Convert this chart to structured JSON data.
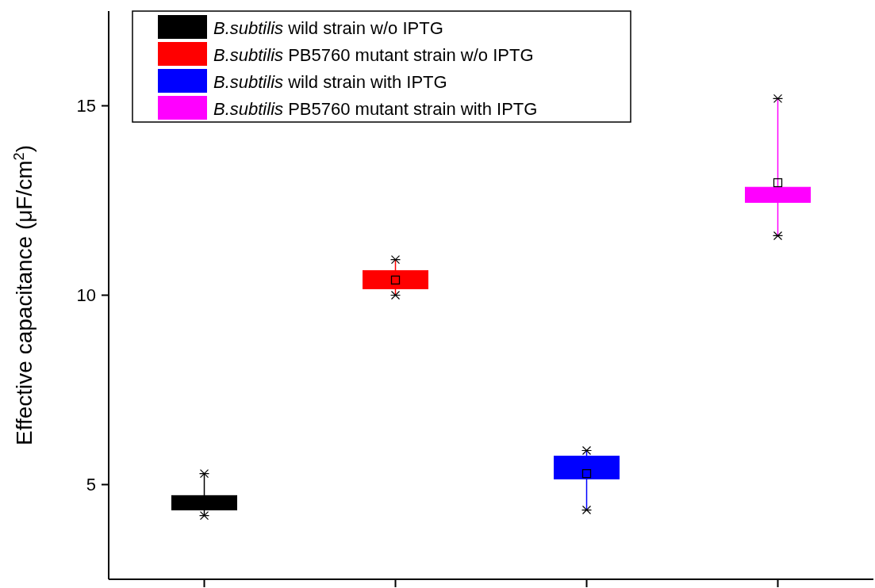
{
  "chart_data": {
    "type": "box",
    "ylabel": "Effective capacitance (μF/cm$^{2}$)",
    "categories": [
      null,
      null,
      null,
      null
    ],
    "ylim": [
      2.5,
      17.5
    ],
    "yticks": [
      5,
      10,
      15
    ],
    "legend": "top left",
    "grid": false,
    "marker": "square",
    "series": [
      {
        "name": "B.subtilis wild strain w/o IPTG",
        "color": "#000000",
        "boxes": [
          {
            "low": 4.18,
            "q1": 4.33,
            "median": 4.5,
            "q3": 4.71,
            "high": 5.29
          },
          null,
          null,
          null
        ]
      },
      {
        "name": "B.subtilis PB5760 mutant strain w/o IPTG",
        "color": "#ff0000",
        "boxes": [
          null,
          {
            "low": 10.0,
            "q1": 10.17,
            "median": 10.4,
            "q3": 10.65,
            "high": 10.94,
            "mean": 10.4
          },
          null,
          null
        ]
      },
      {
        "name": "B.subtilis wild strain with IPTG",
        "color": "#0000ff",
        "boxes": [
          null,
          null,
          {
            "low": 4.33,
            "q1": 5.15,
            "median": 5.4,
            "q3": 5.75,
            "high": 5.9,
            "mean": 5.29
          },
          null
        ]
      },
      {
        "name": "B.subtilis PB5760 mutant strain with IPTG",
        "color": "#ff00ff",
        "boxes": [
          null,
          null,
          null,
          {
            "low": 11.57,
            "q1": 12.45,
            "median": 12.65,
            "q3": 12.85,
            "high": 15.19,
            "mean": 12.97
          }
        ]
      }
    ]
  }
}
